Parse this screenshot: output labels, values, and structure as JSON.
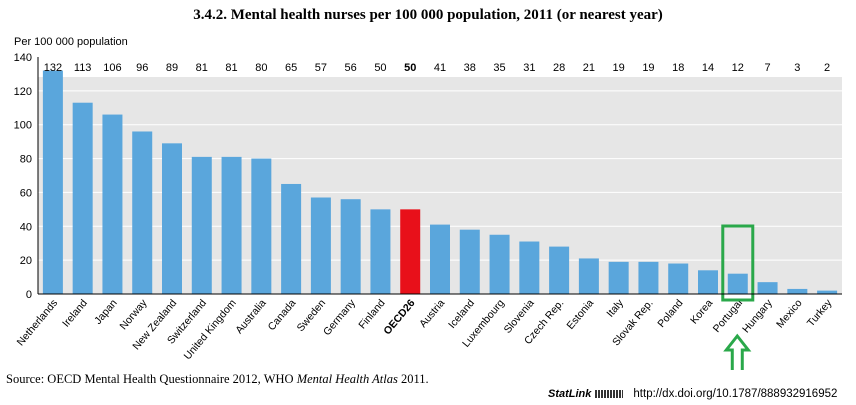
{
  "header": {
    "title": "3.4.2.  Mental health nurses per 100 000 population, 2011 (or nearest year)",
    "unit_label": "Per 100 000 population"
  },
  "chart_data": {
    "type": "bar",
    "categories": [
      "Netherlands",
      "Ireland",
      "Japan",
      "Norway",
      "New Zealand",
      "Switzerland",
      "United Kingdom",
      "Australia",
      "Canada",
      "Sweden",
      "Germany",
      "Finland",
      "OECD26",
      "Austria",
      "Iceland",
      "Luxembourg",
      "Slovenia",
      "Czech Rep.",
      "Estonia",
      "Italy",
      "Slovak Rep.",
      "Poland",
      "Korea",
      "Portugal",
      "Hungary",
      "Mexico",
      "Turkey"
    ],
    "values": [
      132,
      113,
      106,
      96,
      89,
      81,
      81,
      80,
      65,
      57,
      56,
      50,
      50,
      41,
      38,
      35,
      31,
      28,
      21,
      19,
      19,
      18,
      14,
      12,
      7,
      3,
      2
    ],
    "ylim": [
      0,
      140
    ],
    "yticks": [
      0,
      20,
      40,
      60,
      80,
      100,
      120,
      140
    ],
    "highlight_category": "OECD26",
    "annotated_category": "Portugal",
    "colors": {
      "bar": "#5aa6dc",
      "highlight": "#e8101a",
      "plot_bg": "#e6e6e6",
      "grid": "#ffffff",
      "label_band": "#ffffff",
      "annotation": "#2aa84a"
    },
    "grid": true
  },
  "footer": {
    "source_prefix": "Source:  OECD Mental Health Questionnaire 2012, WHO ",
    "source_italic": "Mental Health Atlas",
    "source_suffix": " 2011.",
    "statlink_label": "StatLink",
    "statlink_url": "http://dx.doi.org/10.1787/888932916952"
  }
}
